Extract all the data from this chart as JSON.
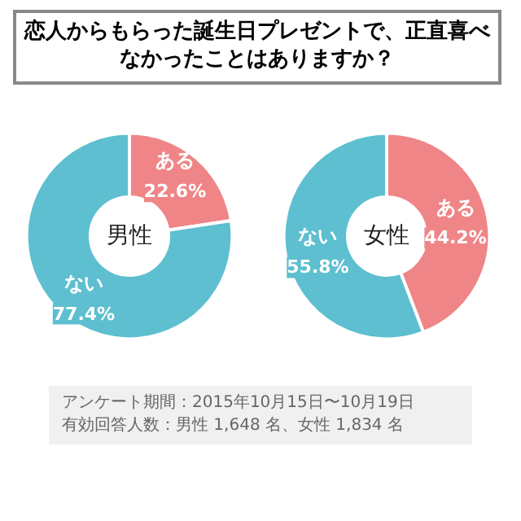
{
  "chart_data": [
    {
      "type": "donut",
      "title": "恋人からもらった誕生日プレゼントで、正直喜べなかったことはありますか？",
      "annotations": [
        "男性"
      ],
      "categories": [
        "ある",
        "ない"
      ],
      "values": [
        22.6,
        77.4
      ],
      "colors": [
        "#ef8587",
        "#5dbfcf"
      ],
      "value_labels": [
        "22.6%",
        "77.4%"
      ]
    },
    {
      "type": "donut",
      "annotations": [
        "女性",
        "アンケート期間：2015年10月15日〜10月19日",
        "有効回答人数：男性 1,648 名、女性 1,834 名"
      ],
      "categories": [
        "ある",
        "ない"
      ],
      "values": [
        44.2,
        55.8
      ],
      "colors": [
        "#ef8587",
        "#5dbfcf"
      ],
      "value_labels": [
        "44.2%",
        "55.8%"
      ]
    }
  ]
}
